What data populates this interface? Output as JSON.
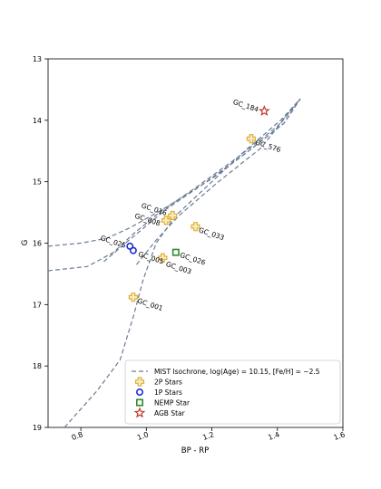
{
  "chart_data": {
    "type": "scatter",
    "xlabel": "BP - RP",
    "ylabel": "G",
    "xlim": [
      0.7,
      1.6
    ],
    "ylim": [
      19,
      13
    ],
    "y_inverted": true,
    "grid": false,
    "legend_position": "lower-right",
    "x_ticks": [
      "0.8",
      "1.0",
      "1.2",
      "1.4",
      "1.6"
    ],
    "y_ticks": [
      "13",
      "14",
      "15",
      "16",
      "17",
      "18",
      "19"
    ],
    "isochrone": {
      "name": "MIST Isochrone, log(Age) = 10.15, [Fe/H] = −2.5",
      "color": "#6b7b96",
      "segments": [
        [
          [
            0.75,
            19.0
          ],
          [
            0.85,
            18.4
          ],
          [
            0.92,
            17.9
          ],
          [
            0.96,
            17.2
          ],
          [
            0.99,
            16.6
          ],
          [
            1.03,
            16.0
          ],
          [
            1.09,
            15.55
          ],
          [
            1.2,
            15.0
          ],
          [
            1.3,
            14.5
          ],
          [
            1.41,
            14.0
          ],
          [
            1.47,
            13.65
          ]
        ],
        [
          [
            0.7,
            16.05
          ],
          [
            0.8,
            16.0
          ],
          [
            0.88,
            15.92
          ],
          [
            0.95,
            15.75
          ],
          [
            1.05,
            15.45
          ],
          [
            1.2,
            14.95
          ],
          [
            1.3,
            14.55
          ],
          [
            1.42,
            14.05
          ],
          [
            1.47,
            13.65
          ]
        ],
        [
          [
            0.7,
            16.45
          ],
          [
            0.82,
            16.38
          ],
          [
            0.9,
            16.15
          ],
          [
            0.96,
            15.85
          ],
          [
            1.04,
            15.5
          ],
          [
            1.15,
            15.1
          ],
          [
            1.28,
            14.6
          ],
          [
            1.4,
            14.1
          ],
          [
            1.47,
            13.65
          ]
        ],
        [
          [
            0.87,
            16.3
          ],
          [
            0.97,
            15.85
          ],
          [
            1.06,
            15.45
          ],
          [
            1.17,
            15.05
          ],
          [
            1.3,
            14.55
          ],
          [
            1.42,
            14.05
          ],
          [
            1.47,
            13.65
          ]
        ],
        [
          [
            0.97,
            16.35
          ],
          [
            1.03,
            15.95
          ],
          [
            1.1,
            15.55
          ],
          [
            1.22,
            15.0
          ],
          [
            1.35,
            14.45
          ],
          [
            1.47,
            13.65
          ]
        ]
      ]
    },
    "series": [
      {
        "name": "2P Stars",
        "marker": "plus",
        "color": "#e0b030",
        "points": [
          {
            "label": "GC_576",
            "x": 1.32,
            "y": 14.3
          },
          {
            "label": "GC_016",
            "x": 1.08,
            "y": 15.55
          },
          {
            "label": "GC_008",
            "x": 1.06,
            "y": 15.63
          },
          {
            "label": "GC_033",
            "x": 1.15,
            "y": 15.73
          },
          {
            "label": "GC_003",
            "x": 1.05,
            "y": 16.24
          },
          {
            "label": "GC_001",
            "x": 0.96,
            "y": 16.88
          }
        ]
      },
      {
        "name": "1P Stars",
        "marker": "circle",
        "color": "#1c2fd6",
        "points": [
          {
            "label": "GC_025",
            "x": 0.95,
            "y": 16.05
          },
          {
            "label": "GC_005",
            "x": 0.96,
            "y": 16.12
          }
        ]
      },
      {
        "name": "NEMP Star",
        "marker": "square",
        "color": "#2e8b2e",
        "points": [
          {
            "label": "GC_026",
            "x": 1.09,
            "y": 16.15
          }
        ]
      },
      {
        "name": "AGB Star",
        "marker": "star",
        "color": "#c0392b",
        "points": [
          {
            "label": "GC_184",
            "x": 1.36,
            "y": 13.85
          }
        ]
      }
    ]
  }
}
